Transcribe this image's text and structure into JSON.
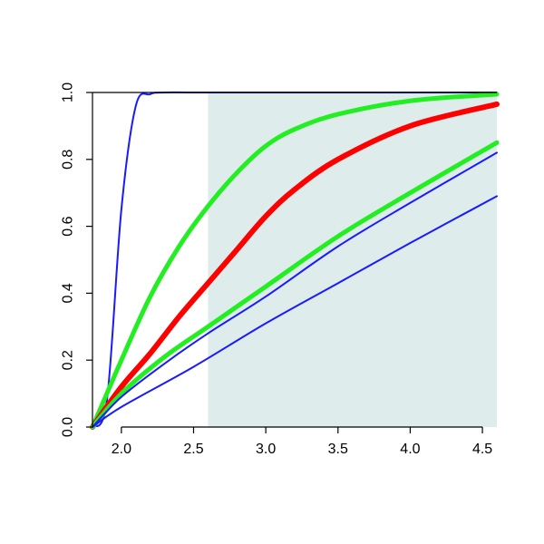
{
  "chart_data": {
    "type": "line",
    "title": "",
    "xlabel": "",
    "ylabel": "",
    "xlim": [
      1.8,
      4.6
    ],
    "ylim": [
      0.0,
      1.0
    ],
    "grid": false,
    "legend": "none",
    "x_ticks": [
      "2.0",
      "2.5",
      "3.0",
      "3.5",
      "4.0",
      "4.5"
    ],
    "y_ticks": [
      "0.0",
      "0.2",
      "0.4",
      "0.6",
      "0.8",
      "1.0"
    ],
    "shaded_region": {
      "x_from": 2.6,
      "x_to": 4.6,
      "color": "#deecec"
    },
    "series": [
      {
        "color": "#1a1aff",
        "style": "thin",
        "x": [
          1.8,
          1.9,
          2.0,
          2.1,
          2.2,
          2.3,
          2.5,
          3.0,
          4.6
        ],
        "y": [
          0.0,
          0.08,
          0.65,
          0.96,
          0.995,
          1.0,
          1.0,
          1.0,
          1.0
        ]
      },
      {
        "color": "#22ee22",
        "style": "thick",
        "x": [
          1.8,
          2.0,
          2.2,
          2.4,
          2.6,
          2.8,
          3.0,
          3.2,
          3.5,
          4.0,
          4.6
        ],
        "y": [
          0.0,
          0.2,
          0.39,
          0.54,
          0.66,
          0.76,
          0.84,
          0.89,
          0.935,
          0.975,
          0.995
        ]
      },
      {
        "color": "#ff0000",
        "style": "thicker",
        "x": [
          1.8,
          2.0,
          2.2,
          2.4,
          2.6,
          2.8,
          3.0,
          3.2,
          3.5,
          4.0,
          4.6
        ],
        "y": [
          0.0,
          0.12,
          0.22,
          0.33,
          0.43,
          0.53,
          0.63,
          0.71,
          0.8,
          0.9,
          0.965
        ]
      },
      {
        "color": "#22ee22",
        "style": "thick",
        "x": [
          1.8,
          2.0,
          2.3,
          2.6,
          3.0,
          3.5,
          4.0,
          4.6
        ],
        "y": [
          0.0,
          0.1,
          0.21,
          0.3,
          0.42,
          0.57,
          0.7,
          0.85
        ]
      },
      {
        "color": "#1a1aff",
        "style": "thin",
        "x": [
          1.8,
          2.0,
          2.3,
          2.6,
          3.0,
          3.5,
          4.0,
          4.6
        ],
        "y": [
          0.0,
          0.09,
          0.19,
          0.28,
          0.39,
          0.54,
          0.67,
          0.82
        ]
      },
      {
        "color": "#1a1aff",
        "style": "thin",
        "x": [
          1.8,
          2.0,
          2.5,
          3.0,
          3.5,
          4.0,
          4.6
        ],
        "y": [
          0.0,
          0.06,
          0.18,
          0.31,
          0.43,
          0.55,
          0.69
        ]
      }
    ]
  }
}
